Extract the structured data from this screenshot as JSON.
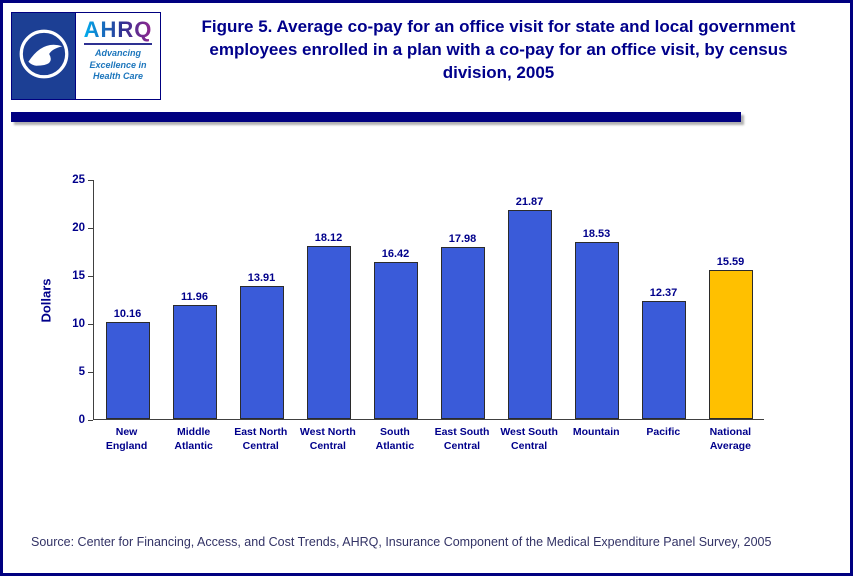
{
  "header": {
    "logo": {
      "ahrq": "AHRQ",
      "tagline": "Advancing\nExcellence in\nHealth Care"
    }
  },
  "chart_data": {
    "type": "bar",
    "title": "Figure 5. Average co-pay for an office visit for state and local government  employees enrolled in a plan with a co-pay for an office visit, by census division, 2005",
    "categories": [
      "New\nEngland",
      "Middle\nAtlantic",
      "East North\nCentral",
      "West North\nCentral",
      "South\nAtlantic",
      "East South\nCentral",
      "West South\nCentral",
      "Mountain",
      "Pacific",
      "National\nAverage"
    ],
    "values": [
      10.16,
      11.96,
      13.91,
      18.12,
      16.42,
      17.98,
      21.87,
      18.53,
      12.37,
      15.59
    ],
    "value_labels": [
      "10.16",
      "11.96",
      "13.91",
      "18.12",
      "16.42",
      "17.98",
      "21.87",
      "18.53",
      "12.37",
      "15.59"
    ],
    "bar_colors": [
      "#3A5BD9",
      "#3A5BD9",
      "#3A5BD9",
      "#3A5BD9",
      "#3A5BD9",
      "#3A5BD9",
      "#3A5BD9",
      "#3A5BD9",
      "#3A5BD9",
      "#FFC000"
    ],
    "xlabel": "",
    "ylabel": "Dollars",
    "ylim": [
      0,
      25
    ],
    "yticks": [
      0,
      5,
      10,
      15,
      20,
      25
    ],
    "grid": false,
    "legend": "none",
    "accent_colors": {
      "bar_blue": "#3A5BD9",
      "highlight_gold": "#FFC000",
      "navy": "#00008B"
    }
  },
  "footer": {
    "source": "Source: Center for Financing, Access, and Cost Trends, AHRQ, Insurance Component of the Medical Expenditure Panel Survey, 2005"
  }
}
